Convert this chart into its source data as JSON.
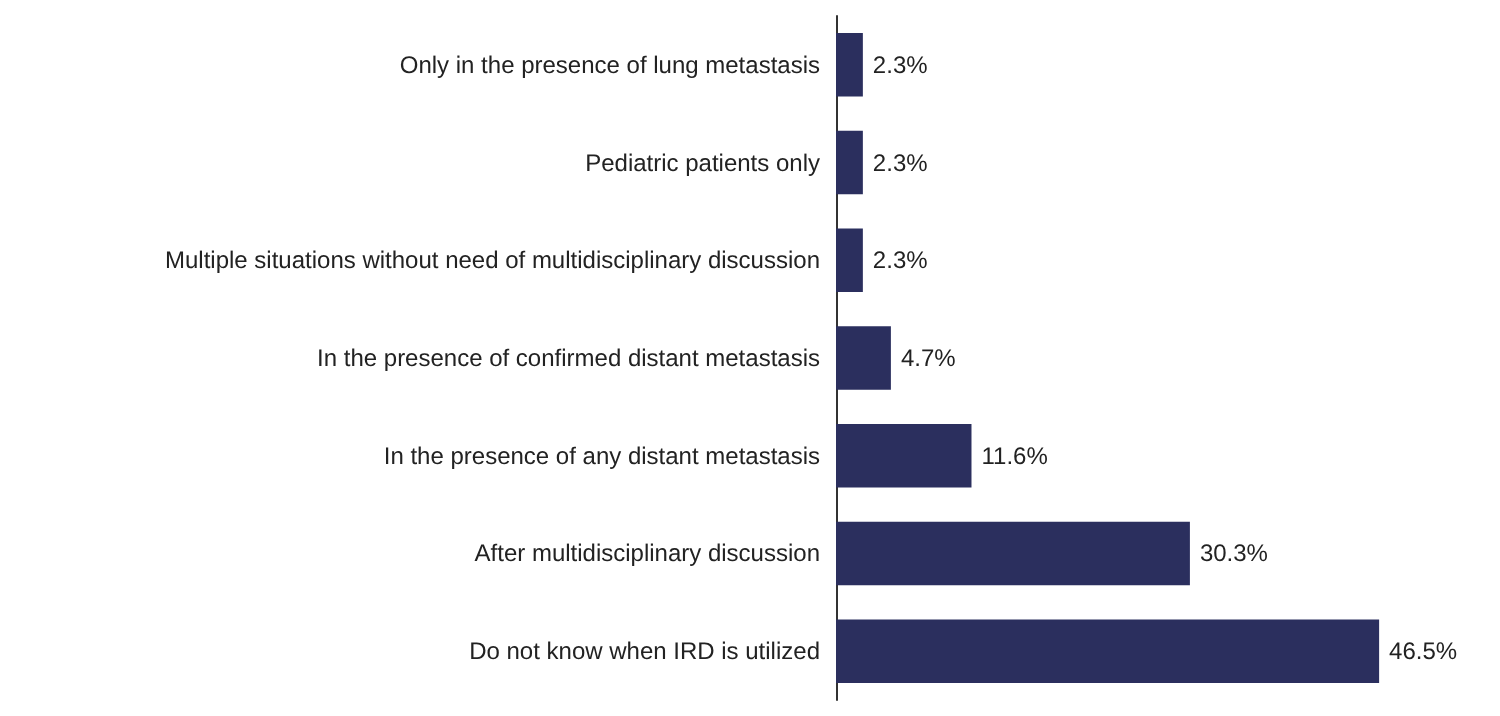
{
  "chart_data": {
    "type": "bar",
    "orientation": "horizontal",
    "categories": [
      "Only in the presence of lung metastasis",
      "Pediatric patients only",
      "Multiple situations without need of multidisciplinary discussion",
      "In the presence of confirmed distant metastasis",
      "In the presence of any distant metastasis",
      "After multidisciplinary discussion",
      "Do not know when IRD is utilized"
    ],
    "values": [
      2.3,
      2.3,
      2.3,
      4.7,
      11.6,
      30.3,
      46.5
    ],
    "value_labels": [
      "2.3%",
      "2.3%",
      "2.3%",
      "4.7%",
      "11.6%",
      "30.3%",
      "46.5%"
    ],
    "color": "#2b2f5e",
    "tick_labels": "y"
  }
}
